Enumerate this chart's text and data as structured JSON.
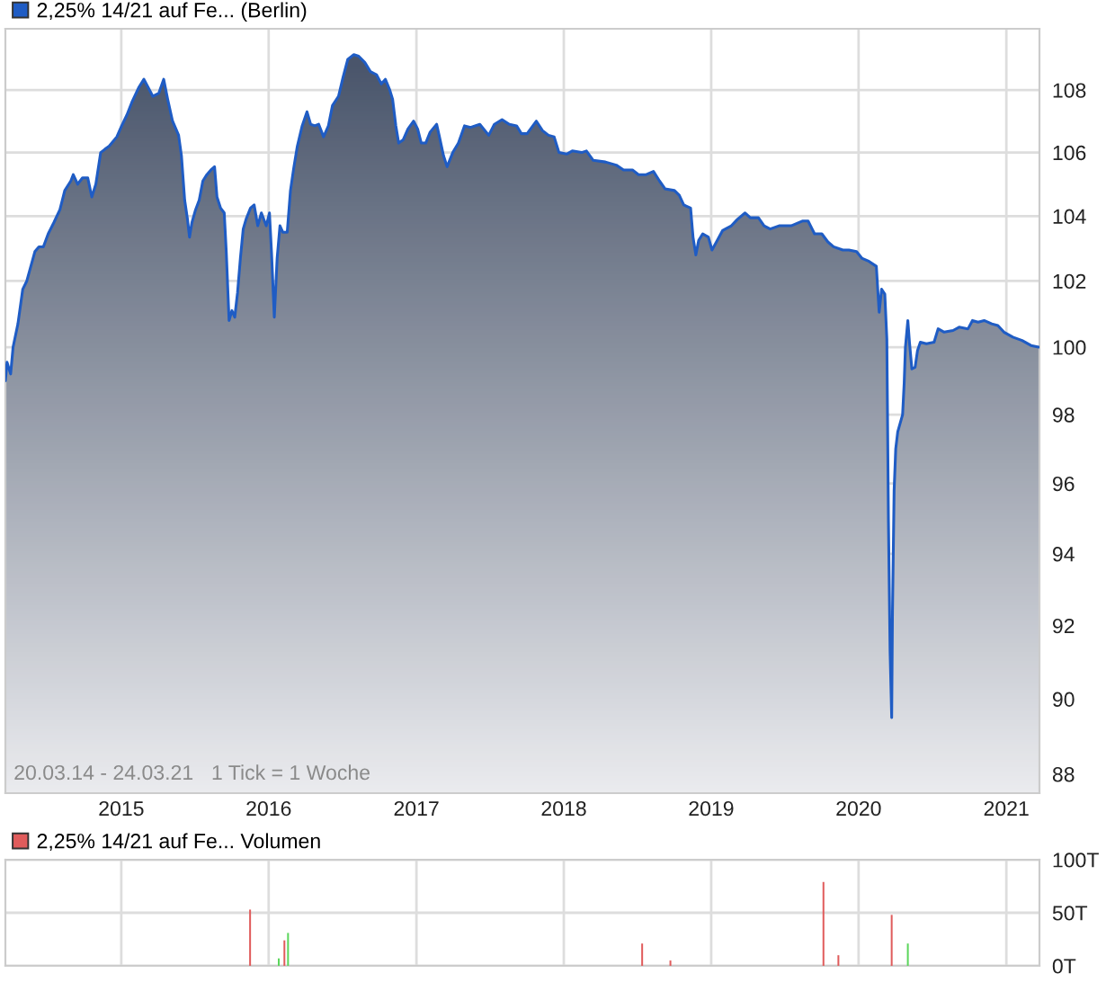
{
  "chart_data": [
    {
      "type": "area",
      "x": [
        "2014-03-20",
        "2014-03-24",
        "2014-04-02",
        "2014-04-08",
        "2014-04-20",
        "2014-05-02",
        "2014-05-12",
        "2014-06-01",
        "2014-06-11",
        "2014-06-22",
        "2014-07-04",
        "2014-07-18",
        "2014-08-02",
        "2014-08-14",
        "2014-08-29",
        "2014-09-04",
        "2014-09-15",
        "2014-09-27",
        "2014-10-10",
        "2014-10-20",
        "2014-10-30",
        "2014-11-11",
        "2014-11-21",
        "2014-12-02",
        "2014-12-21",
        "2015-01-02",
        "2015-01-15",
        "2015-01-27",
        "2015-02-14",
        "2015-02-26",
        "2015-03-08",
        "2015-03-20",
        "2015-04-04",
        "2015-04-16",
        "2015-04-26",
        "2015-05-08",
        "2015-05-23",
        "2015-05-30",
        "2015-06-07",
        "2015-06-14",
        "2015-06-19",
        "2015-06-25",
        "2015-07-04",
        "2015-07-13",
        "2015-07-22",
        "2015-08-01",
        "2015-08-11",
        "2015-08-20",
        "2015-08-26",
        "2015-09-04",
        "2015-09-13",
        "2015-09-18",
        "2015-09-25",
        "2015-10-02",
        "2015-10-09",
        "2015-10-16",
        "2015-10-23",
        "2015-10-30",
        "2015-11-06",
        "2015-11-17",
        "2015-11-26",
        "2015-12-05",
        "2015-12-14",
        "2015-12-26",
        "2016-01-03",
        "2016-01-08",
        "2016-01-15",
        "2016-01-22",
        "2016-01-29",
        "2016-02-05",
        "2016-02-16",
        "2016-02-24",
        "2016-03-03",
        "2016-03-12",
        "2016-03-24",
        "2016-04-05",
        "2016-04-14",
        "2016-04-24",
        "2016-05-04",
        "2016-05-16",
        "2016-05-28",
        "2016-06-07",
        "2016-06-22",
        "2016-07-03",
        "2016-07-15",
        "2016-07-30",
        "2016-08-11",
        "2016-08-26",
        "2016-09-09",
        "2016-09-24",
        "2016-10-06",
        "2016-10-16",
        "2016-10-27",
        "2016-11-03",
        "2016-11-11",
        "2016-11-18",
        "2016-11-29",
        "2016-12-11",
        "2016-12-25",
        "2017-01-04",
        "2017-01-13",
        "2017-01-24",
        "2017-02-04",
        "2017-02-20",
        "2017-02-27",
        "2017-03-09",
        "2017-03-18",
        "2017-04-01",
        "2017-04-15",
        "2017-04-30",
        "2017-05-15",
        "2017-06-07",
        "2017-06-29",
        "2017-07-13",
        "2017-08-01",
        "2017-08-19",
        "2017-09-06",
        "2017-09-18",
        "2017-10-02",
        "2017-10-25",
        "2017-11-09",
        "2017-11-24",
        "2017-12-08",
        "2017-12-20",
        "2018-01-08",
        "2018-01-22",
        "2018-02-14",
        "2018-02-26",
        "2018-03-15",
        "2018-04-14",
        "2018-05-11",
        "2018-05-29",
        "2018-06-20",
        "2018-07-05",
        "2018-07-24",
        "2018-08-11",
        "2018-08-26",
        "2018-09-09",
        "2018-10-02",
        "2018-10-14",
        "2018-10-25",
        "2018-11-11",
        "2018-11-17",
        "2018-11-24",
        "2018-12-01",
        "2018-12-11",
        "2018-12-25",
        "2019-01-03",
        "2019-01-14",
        "2019-01-29",
        "2019-02-20",
        "2019-03-07",
        "2019-03-26",
        "2019-04-08",
        "2019-04-28",
        "2019-05-12",
        "2019-05-27",
        "2019-06-18",
        "2019-07-18",
        "2019-08-16",
        "2019-08-29",
        "2019-09-14",
        "2019-10-02",
        "2019-10-17",
        "2019-10-31",
        "2019-11-23",
        "2019-12-08",
        "2019-12-27",
        "2020-01-09",
        "2020-01-27",
        "2020-02-14",
        "2020-02-21",
        "2020-02-27",
        "2020-03-06",
        "2020-03-11",
        "2020-03-15",
        "2020-03-19",
        "2020-03-23",
        "2020-03-25",
        "2020-03-29",
        "2020-04-02",
        "2020-04-07",
        "2020-04-19",
        "2020-04-23",
        "2020-04-26",
        "2020-05-02",
        "2020-05-06",
        "2020-05-12",
        "2020-05-20",
        "2020-05-26",
        "2020-06-02",
        "2020-06-17",
        "2020-07-06",
        "2020-07-16",
        "2020-07-31",
        "2020-08-22",
        "2020-09-06",
        "2020-09-28",
        "2020-10-09",
        "2020-10-23",
        "2020-11-07",
        "2020-11-26",
        "2020-12-11",
        "2020-12-26",
        "2021-01-17",
        "2021-02-09",
        "2021-03-03",
        "2021-03-22"
      ],
      "series": [
        {
          "type": "area",
          "name": "2,25% 14/21 auf Fe... (Berlin)",
          "color": "#1f5cc4",
          "values": [
            99.0,
            99.55,
            99.2,
            100.0,
            100.7,
            101.75,
            102.0,
            102.9,
            103.05,
            103.05,
            103.45,
            103.8,
            104.2,
            104.8,
            105.1,
            105.3,
            105.0,
            105.2,
            105.2,
            104.6,
            105.0,
            106.0,
            106.1,
            106.2,
            106.5,
            106.85,
            107.2,
            107.6,
            108.1,
            108.35,
            108.1,
            107.8,
            107.9,
            108.35,
            107.7,
            107.0,
            106.55,
            105.9,
            104.5,
            103.9,
            103.35,
            103.8,
            104.2,
            104.5,
            105.1,
            105.3,
            105.45,
            105.55,
            104.6,
            104.25,
            104.1,
            102.9,
            100.8,
            101.1,
            100.9,
            101.65,
            102.7,
            103.6,
            103.9,
            104.25,
            104.35,
            103.7,
            104.1,
            103.7,
            104.1,
            102.9,
            100.9,
            102.7,
            103.7,
            103.5,
            103.5,
            104.8,
            105.5,
            106.2,
            106.85,
            107.3,
            106.9,
            106.85,
            106.9,
            106.5,
            106.85,
            107.5,
            107.8,
            108.4,
            109.0,
            109.15,
            109.1,
            108.9,
            108.6,
            108.5,
            108.2,
            108.35,
            108.0,
            107.7,
            106.85,
            106.3,
            106.4,
            106.75,
            107.0,
            106.75,
            106.3,
            106.3,
            106.65,
            106.9,
            106.5,
            105.9,
            105.55,
            106.0,
            106.3,
            106.85,
            106.8,
            106.9,
            106.55,
            106.9,
            107.05,
            106.9,
            106.85,
            106.6,
            106.6,
            107.0,
            106.7,
            106.55,
            106.5,
            106.0,
            105.95,
            106.05,
            106.0,
            106.05,
            105.75,
            105.7,
            105.6,
            105.45,
            105.45,
            105.3,
            105.3,
            105.4,
            105.1,
            104.85,
            104.8,
            104.65,
            104.35,
            104.25,
            103.35,
            102.8,
            103.25,
            103.45,
            103.35,
            102.95,
            103.2,
            103.55,
            103.7,
            103.9,
            104.1,
            103.95,
            103.95,
            103.7,
            103.6,
            103.7,
            103.7,
            103.85,
            103.85,
            103.45,
            103.45,
            103.2,
            103.05,
            102.95,
            102.95,
            102.9,
            102.7,
            102.6,
            102.45,
            101.05,
            101.75,
            101.6,
            100.25,
            94.9,
            91.3,
            89.5,
            92.4,
            95.8,
            97.0,
            97.5,
            98.0,
            98.95,
            100.0,
            100.8,
            100.15,
            99.35,
            99.4,
            99.9,
            100.15,
            100.1,
            100.15,
            100.55,
            100.45,
            100.5,
            100.6,
            100.55,
            100.8,
            100.75,
            100.8,
            100.7,
            100.65,
            100.45,
            100.3,
            100.2,
            100.05,
            100.0
          ]
        }
      ],
      "xlim": [
        "2014-03-20",
        "2021-03-24"
      ],
      "xticks": [
        {
          "value": "2015-01-01",
          "label": "2015"
        },
        {
          "value": "2016-01-01",
          "label": "2016"
        },
        {
          "value": "2017-01-01",
          "label": "2017"
        },
        {
          "value": "2018-01-01",
          "label": "2018"
        },
        {
          "value": "2019-01-01",
          "label": "2019"
        },
        {
          "value": "2020-01-01",
          "label": "2020"
        },
        {
          "value": "2021-01-01",
          "label": "2021"
        }
      ],
      "ylim": [
        87.5,
        110
      ],
      "yticks": [
        88,
        90,
        92,
        94,
        96,
        98,
        100,
        102,
        104,
        106,
        108
      ],
      "log": true,
      "grid": true,
      "legend": "top left",
      "annotations": [
        "20.03.14 - 24.03.21",
        "1 Tick = 1 Woche"
      ]
    },
    {
      "type": "bar",
      "x": [
        "2015-11-16",
        "2016-01-26",
        "2016-02-09",
        "2016-02-18",
        "2018-07-14",
        "2018-09-22",
        "2019-10-06",
        "2019-11-12",
        "2020-03-23",
        "2020-05-02"
      ],
      "series": [
        {
          "name": "2,25% 14/21 auf Fe... Volumen",
          "color": "#e05c5c",
          "colors": [
            "#e05c5c",
            "#5cd65c",
            "#e05c5c",
            "#5cd65c",
            "#e05c5c",
            "#e05c5c",
            "#e05c5c",
            "#e05c5c",
            "#e05c5c",
            "#5cd65c"
          ],
          "values": [
            53,
            7,
            24,
            31,
            21,
            5,
            79,
            10,
            48,
            21
          ]
        }
      ],
      "xlim": [
        "2014-03-20",
        "2021-03-24"
      ],
      "xticks": [
        {
          "value": "2015-01-01",
          "label": null
        },
        {
          "value": "2016-01-01",
          "label": null
        },
        {
          "value": "2017-01-01",
          "label": null
        },
        {
          "value": "2018-01-01",
          "label": null
        },
        {
          "value": "2019-01-01",
          "label": null
        },
        {
          "value": "2020-01-01",
          "label": null
        },
        {
          "value": "2021-01-01",
          "label": null
        }
      ],
      "ylim": [
        0,
        100
      ],
      "yticks": [
        {
          "value": 0,
          "label": "0T"
        },
        {
          "value": 50,
          "label": "50T"
        },
        {
          "value": 100,
          "label": "100T"
        }
      ],
      "grid": true,
      "legend": "top left",
      "tick_labels": "y"
    }
  ]
}
